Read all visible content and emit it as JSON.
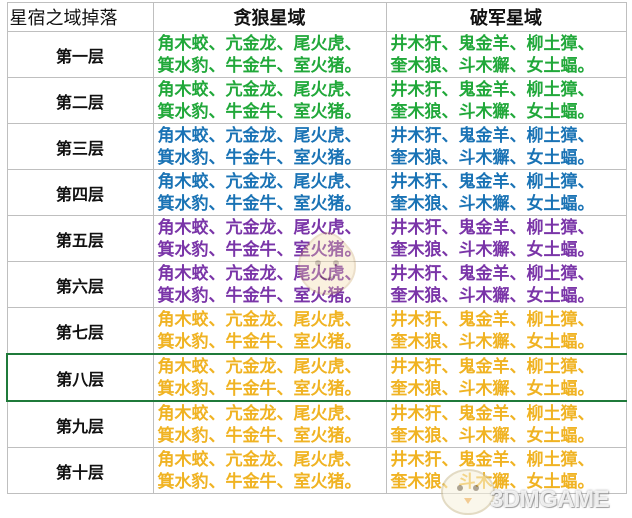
{
  "headers": [
    "星宿之域掉落",
    "贪狼星域",
    "破军星域"
  ],
  "rows": [
    {
      "floor": "第一层",
      "color": "#21a83a",
      "tanlang": [
        "角木蛟、亢金龙、尾火虎、",
        "箕水豹、牛金牛、室火猪。"
      ],
      "pojun": [
        "井木犴、鬼金羊、柳土獐、",
        "奎木狼、斗木獬、女土蝠。"
      ]
    },
    {
      "floor": "第二层",
      "color": "#21a83a",
      "tanlang": [
        "角木蛟、亢金龙、尾火虎、",
        "箕水豹、牛金牛、室火猪。"
      ],
      "pojun": [
        "井木犴、鬼金羊、柳土獐、",
        "奎木狼、斗木獬、女土蝠。"
      ]
    },
    {
      "floor": "第三层",
      "color": "#1a73b5",
      "tanlang": [
        "角木蛟、亢金龙、尾火虎、",
        "箕水豹、牛金牛、室火猪。"
      ],
      "pojun": [
        "井木犴、鬼金羊、柳土獐、",
        "奎木狼、斗木獬、女土蝠。"
      ]
    },
    {
      "floor": "第四层",
      "color": "#1a73b5",
      "tanlang": [
        "角木蛟、亢金龙、尾火虎、",
        "箕水豹、牛金牛、室火猪。"
      ],
      "pojun": [
        "井木犴、鬼金羊、柳土獐、",
        "奎木狼、斗木獬、女土蝠。"
      ]
    },
    {
      "floor": "第五层",
      "color": "#7a35a8",
      "tanlang": [
        "角木蛟、亢金龙、尾火虎、",
        "箕水豹、牛金牛、室火猪。"
      ],
      "pojun": [
        "井木犴、鬼金羊、柳土獐、",
        "奎木狼、斗木獬、女土蝠。"
      ]
    },
    {
      "floor": "第六层",
      "color": "#7a35a8",
      "tanlang": [
        "角木蛟、亢金龙、尾火虎、",
        "箕水豹、牛金牛、室火猪。"
      ],
      "pojun": [
        "井木犴、鬼金羊、柳土獐、",
        "奎木狼、斗木獬、女土蝠。"
      ]
    },
    {
      "floor": "第七层",
      "color": "#f0b323",
      "tanlang": [
        "角木蛟、亢金龙、尾火虎、",
        "箕水豹、牛金牛、室火猪。"
      ],
      "pojun": [
        "井木犴、鬼金羊、柳土獐、",
        "奎木狼、斗木獬、女土蝠。"
      ]
    },
    {
      "floor": "第八层",
      "color": "#f0b323",
      "tanlang": [
        "角木蛟、亢金龙、尾火虎、",
        "箕水豹、牛金牛、室火猪。"
      ],
      "pojun": [
        "井木犴、鬼金羊、柳土獐、",
        "奎木狼、斗木獬、女土蝠。"
      ]
    },
    {
      "floor": "第九层",
      "color": "#f0b323",
      "tanlang": [
        "角木蛟、亢金龙、尾火虎、",
        "箕水豹、牛金牛、室火猪。"
      ],
      "pojun": [
        "井木犴、鬼金羊、柳土獐、",
        "奎木狼、斗木獬、女土蝠。"
      ]
    },
    {
      "floor": "第十层",
      "color": "#f0b323",
      "tanlang": [
        "角木蛟、亢金龙、尾火虎、",
        "箕水豹、牛金牛、室火猪。"
      ],
      "pojun": [
        "井木犴、鬼金羊、柳土獐、",
        "奎木狼、斗木獬、女土蝠。"
      ]
    }
  ],
  "selected_row": 7,
  "grid_color": "#bfbfbf",
  "watermark": "3DMGAME"
}
